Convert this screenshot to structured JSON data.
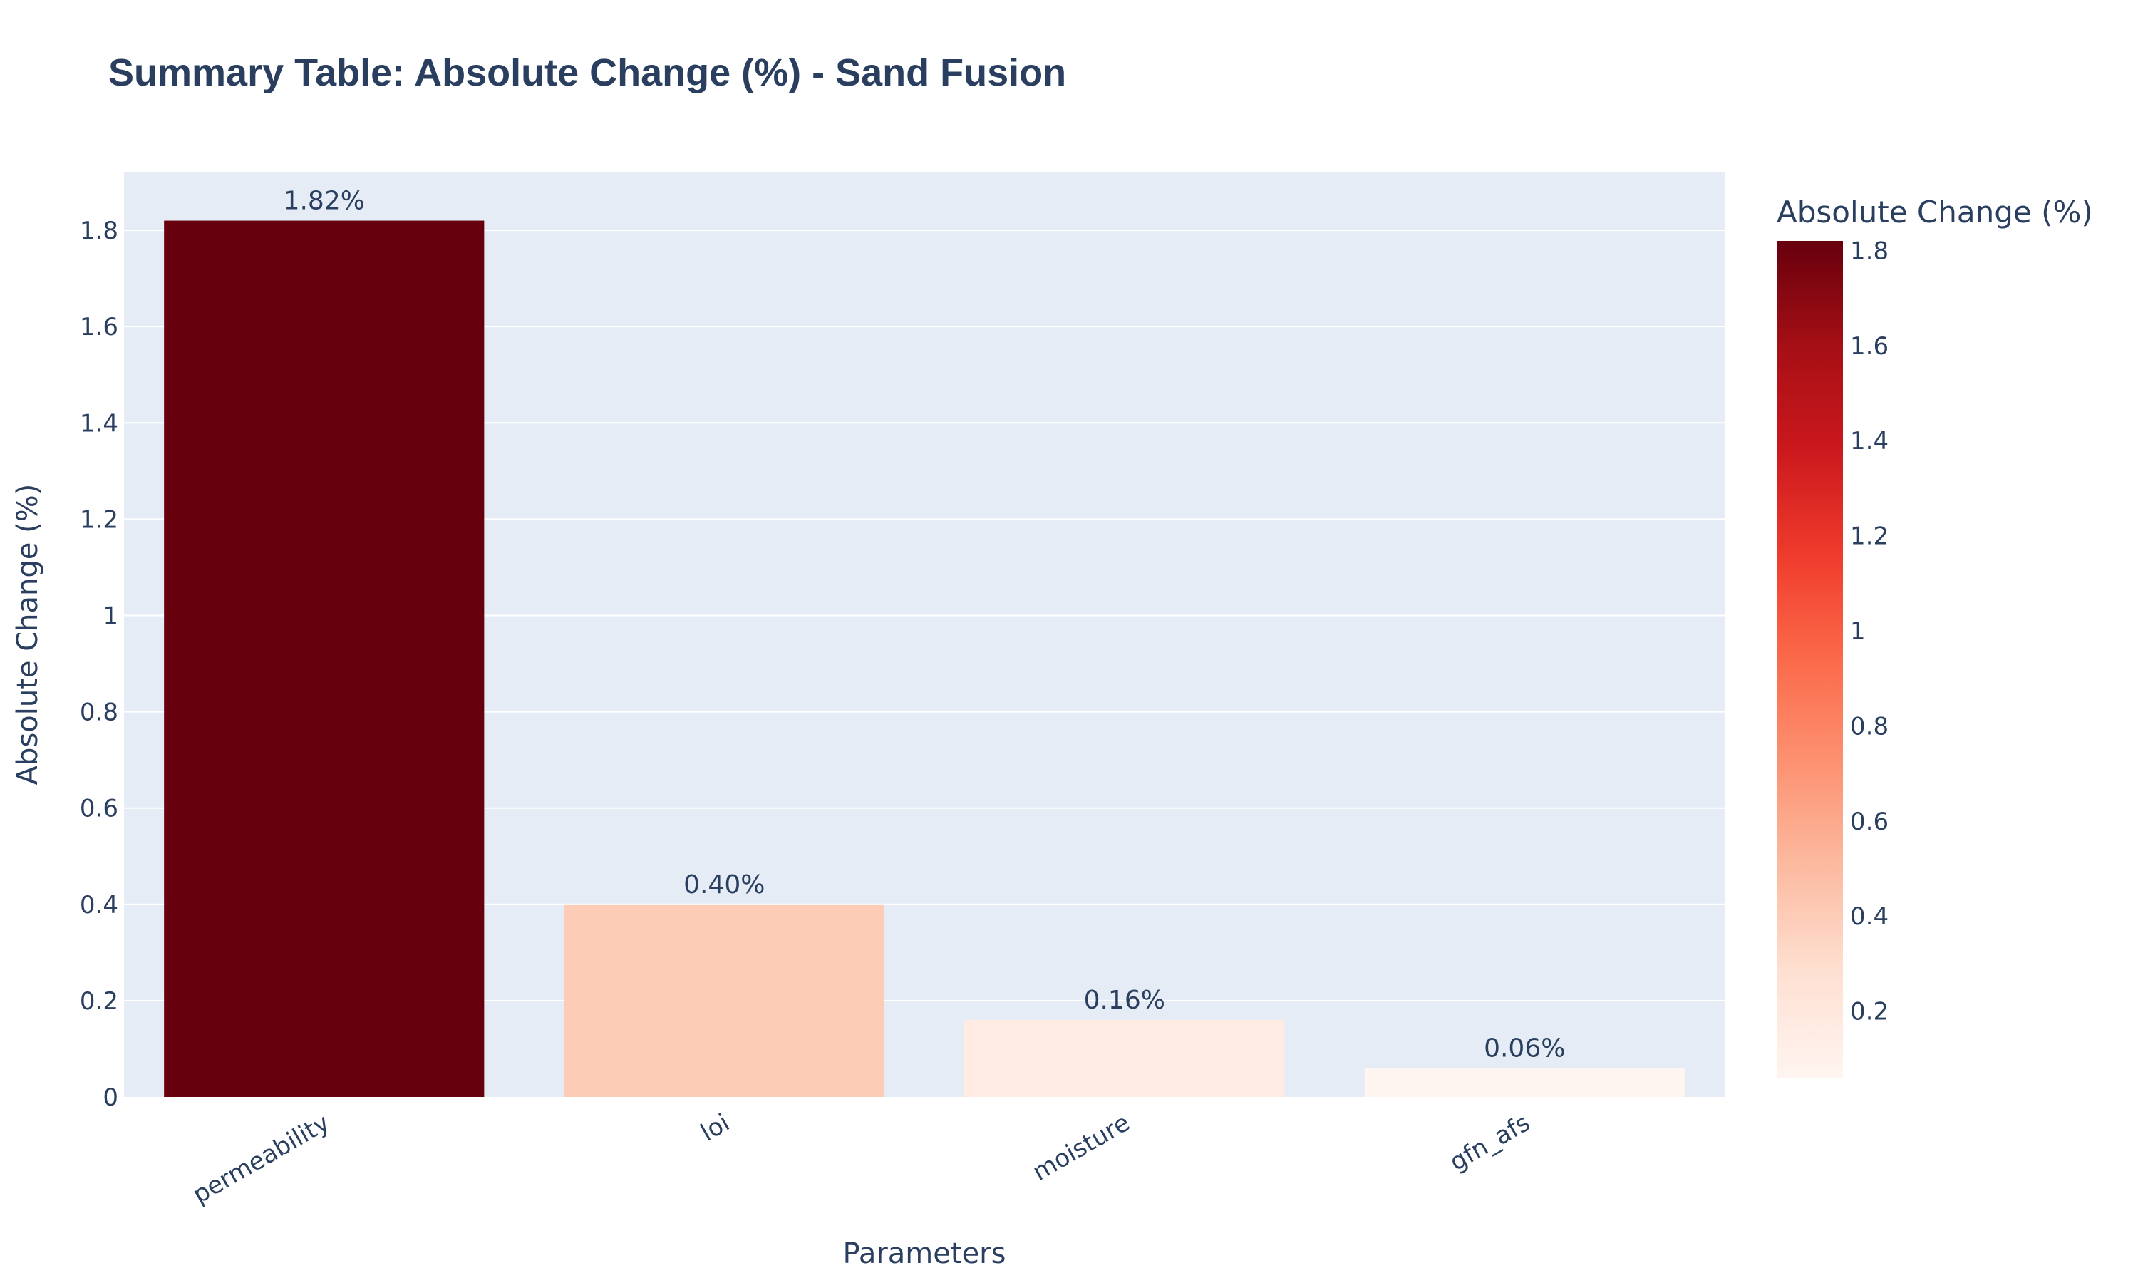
{
  "chart_data": {
    "type": "bar",
    "title": "Summary Table: Absolute Change (%) - Sand Fusion",
    "xlabel": "Parameters",
    "ylabel": "Absolute Change (%)",
    "categories": [
      "permeability",
      "loi",
      "moisture",
      "gfn_afs"
    ],
    "values": [
      1.82,
      0.4,
      0.16,
      0.06
    ],
    "data_labels": [
      "1.82%",
      "0.40%",
      "0.16%",
      "0.06%"
    ],
    "ylim": [
      0,
      1.92
    ],
    "yticks": [
      0,
      0.2,
      0.4,
      0.6,
      0.8,
      1,
      1.2,
      1.4,
      1.6,
      1.8
    ],
    "ytick_labels": [
      "0",
      "0.2",
      "0.4",
      "0.6",
      "0.8",
      "1",
      "1.2",
      "1.4",
      "1.6",
      "1.8"
    ],
    "grid": true,
    "legend": "none",
    "plot_background": "#e5ecf6",
    "colorbar": {
      "title": "Absolute Change (%)",
      "range": [
        0.06,
        1.82
      ],
      "ticks": [
        0.2,
        0.4,
        0.6,
        0.8,
        1,
        1.2,
        1.4,
        1.6,
        1.8
      ],
      "tick_labels": [
        "0.2",
        "0.4",
        "0.6",
        "0.8",
        "1",
        "1.2",
        "1.4",
        "1.6",
        "1.8"
      ],
      "colorscale": [
        "#fff5f0",
        "#fee0d2",
        "#fcbba1",
        "#fc9272",
        "#fb6a4a",
        "#ef3b2c",
        "#cb181d",
        "#a50f15",
        "#67000d"
      ]
    }
  }
}
